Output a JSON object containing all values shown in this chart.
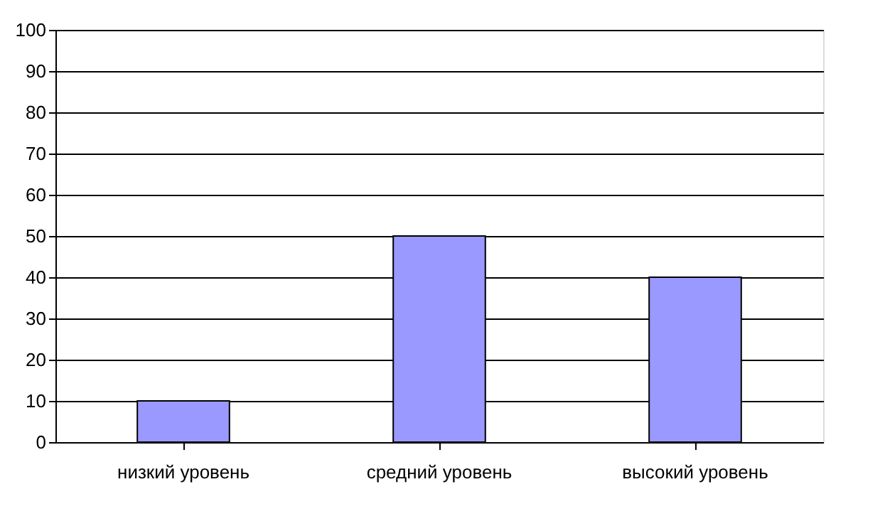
{
  "chart_data": {
    "type": "bar",
    "categories": [
      "низкий уровень",
      "средний уровень",
      "высокий уровень"
    ],
    "values": [
      10,
      50,
      40
    ],
    "color": "#9999ff",
    "ylim": [
      0,
      100
    ],
    "yticks": [
      0,
      10,
      20,
      30,
      40,
      50,
      60,
      70,
      80,
      90,
      100
    ],
    "grid": "y"
  }
}
